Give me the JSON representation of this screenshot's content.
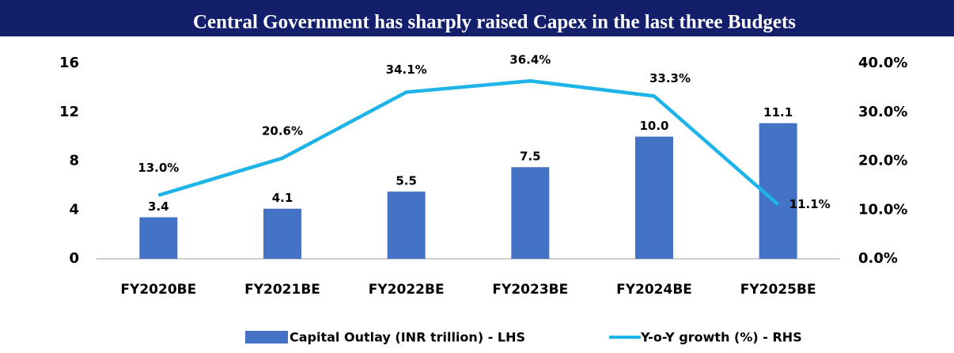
{
  "chart_data": {
    "type": "bar",
    "title": "Central Government has sharply raised Capex in the last three Budgets",
    "categories": [
      "FY2020BE",
      "FY2021BE",
      "FY2022BE",
      "FY2023BE",
      "FY2024BE",
      "FY2025BE"
    ],
    "series": [
      {
        "name": "Capital Outlay (INR trillion) - LHS",
        "type": "bar",
        "color": "#4472c4",
        "values": [
          3.4,
          4.1,
          5.5,
          7.5,
          10.0,
          11.1
        ],
        "value_labels": [
          "3.4",
          "4.1",
          "5.5",
          "7.5",
          "10.0",
          "11.1"
        ]
      },
      {
        "name": "Y-o-Y growth (%) - RHS",
        "type": "line",
        "axis": "y2",
        "color": "#1eb4e8",
        "values": [
          13.0,
          20.6,
          34.1,
          36.4,
          33.3,
          11.1
        ],
        "value_labels": [
          "13.0%",
          "20.6%",
          "34.1%",
          "36.4%",
          "33.3%",
          "11.1%"
        ]
      }
    ],
    "ylim": [
      0,
      16
    ],
    "yticks": [
      0,
      4,
      8,
      12,
      16
    ],
    "y2lim": [
      0,
      40
    ],
    "y2ticks": [
      {
        "value": 0,
        "label": "0.0%"
      },
      {
        "value": 10,
        "label": "10.0%"
      },
      {
        "value": 20,
        "label": "20.0%"
      },
      {
        "value": 30,
        "label": "30.0%"
      },
      {
        "value": 40,
        "label": "40.0%"
      }
    ],
    "grid": false,
    "legend": "bottom"
  }
}
